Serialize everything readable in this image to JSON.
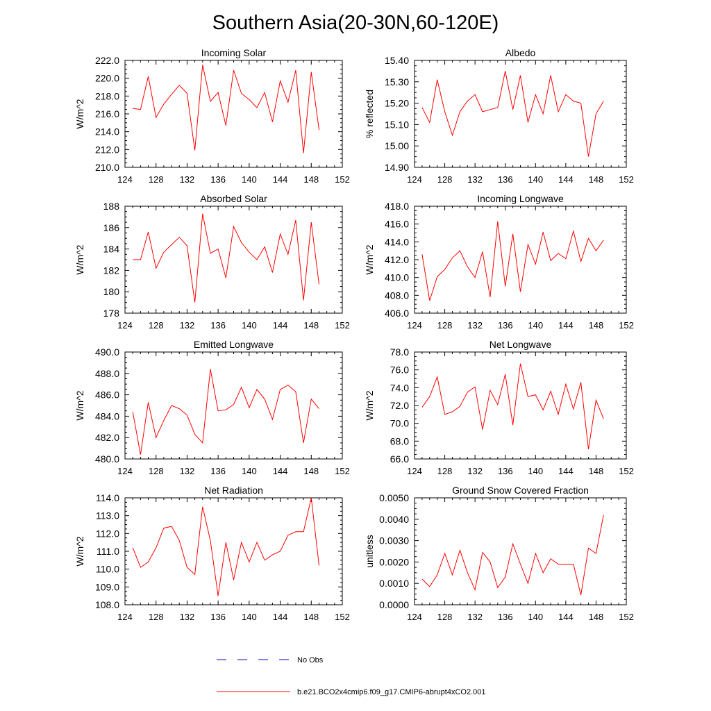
{
  "page": {
    "title": "Southern Asia(20-30N,60-120E)"
  },
  "legend": {
    "entries": [
      {
        "label": "No Obs",
        "color": "#0000cc",
        "dashed": true
      },
      {
        "label": "b.e21.BCO2x4cmip6.f09_g17.CMIP6-abrupt4xCO2.001",
        "color": "#ff0000",
        "dashed": false
      }
    ]
  },
  "chart_data": [
    {
      "type": "line",
      "id": "incoming-solar",
      "title": "Incoming Solar",
      "ylabel": "W/m^2",
      "xlim": [
        124,
        152
      ],
      "xticks": [
        124,
        128,
        132,
        136,
        140,
        144,
        148,
        152
      ],
      "ylim": [
        210,
        222
      ],
      "yticks": [
        "210.0",
        "212.0",
        "214.0",
        "216.0",
        "218.0",
        "220.0",
        "222.0"
      ],
      "x": [
        125,
        126,
        127,
        128,
        129,
        130,
        131,
        132,
        133,
        134,
        135,
        136,
        137,
        138,
        139,
        140,
        141,
        142,
        143,
        144,
        145,
        146,
        147,
        148,
        149
      ],
      "series": [
        {
          "name": "b.e21.BCO2x4cmip6.f09_g17.CMIP6-abrupt4xCO2.001",
          "color": "#ff0000",
          "values": [
            216.6,
            216.5,
            220.2,
            215.6,
            217.1,
            218.2,
            219.2,
            218.3,
            211.9,
            221.5,
            217.4,
            218.4,
            214.7,
            220.9,
            218.3,
            217.6,
            216.7,
            218.4,
            215.1,
            219.7,
            217.3,
            220.9,
            211.6,
            220.7,
            214.2
          ]
        }
      ]
    },
    {
      "type": "line",
      "id": "albedo",
      "title": "Albedo",
      "ylabel": "% reflected",
      "xlim": [
        124,
        152
      ],
      "xticks": [
        124,
        128,
        132,
        136,
        140,
        144,
        148,
        152
      ],
      "ylim": [
        14.9,
        15.4
      ],
      "yticks": [
        "14.90",
        "15.00",
        "15.10",
        "15.20",
        "15.30",
        "15.40"
      ],
      "x": [
        125,
        126,
        127,
        128,
        129,
        130,
        131,
        132,
        133,
        134,
        135,
        136,
        137,
        138,
        139,
        140,
        141,
        142,
        143,
        144,
        145,
        146,
        147,
        148,
        149
      ],
      "series": [
        {
          "name": "b.e21.BCO2x4cmip6.f09_g17.CMIP6-abrupt4xCO2.001",
          "color": "#ff0000",
          "values": [
            15.18,
            15.11,
            15.31,
            15.16,
            15.05,
            15.16,
            15.21,
            15.24,
            15.16,
            15.17,
            15.18,
            15.35,
            15.17,
            15.33,
            15.11,
            15.24,
            15.15,
            15.33,
            15.16,
            15.24,
            15.21,
            15.2,
            14.95,
            15.15,
            15.21
          ]
        }
      ]
    },
    {
      "type": "line",
      "id": "absorbed-solar",
      "title": "Absorbed Solar",
      "ylabel": "W/m^2",
      "xlim": [
        124,
        152
      ],
      "xticks": [
        124,
        128,
        132,
        136,
        140,
        144,
        148,
        152
      ],
      "ylim": [
        178,
        188
      ],
      "yticks": [
        "178",
        "180",
        "182",
        "184",
        "186",
        "188"
      ],
      "x": [
        125,
        126,
        127,
        128,
        129,
        130,
        131,
        132,
        133,
        134,
        135,
        136,
        137,
        138,
        139,
        140,
        141,
        142,
        143,
        144,
        145,
        146,
        147,
        148,
        149
      ],
      "series": [
        {
          "name": "b.e21.BCO2x4cmip6.f09_g17.CMIP6-abrupt4xCO2.001",
          "color": "#ff0000",
          "values": [
            183.0,
            183.0,
            185.6,
            182.2,
            183.7,
            184.4,
            185.1,
            184.3,
            179.0,
            187.3,
            183.6,
            184.0,
            181.3,
            186.1,
            184.6,
            183.7,
            183.0,
            184.2,
            181.8,
            185.4,
            183.5,
            186.7,
            179.2,
            186.5,
            180.7
          ]
        }
      ]
    },
    {
      "type": "line",
      "id": "incoming-longwave",
      "title": "Incoming Longwave",
      "ylabel": "W/m^2",
      "xlim": [
        124,
        152
      ],
      "xticks": [
        124,
        128,
        132,
        136,
        140,
        144,
        148,
        152
      ],
      "ylim": [
        406,
        418
      ],
      "yticks": [
        "406.0",
        "408.0",
        "410.0",
        "412.0",
        "414.0",
        "416.0",
        "418.0"
      ],
      "x": [
        125,
        126,
        127,
        128,
        129,
        130,
        131,
        132,
        133,
        134,
        135,
        136,
        137,
        138,
        139,
        140,
        141,
        142,
        143,
        144,
        145,
        146,
        147,
        148,
        149
      ],
      "series": [
        {
          "name": "b.e21.BCO2x4cmip6.f09_g17.CMIP6-abrupt4xCO2.001",
          "color": "#ff0000",
          "values": [
            412.6,
            407.4,
            410.1,
            410.9,
            412.2,
            413.0,
            411.2,
            410.0,
            412.9,
            407.8,
            416.3,
            409.0,
            414.9,
            408.4,
            413.7,
            411.5,
            415.1,
            411.9,
            412.7,
            412.1,
            415.2,
            411.8,
            414.4,
            413.0,
            414.2
          ]
        }
      ]
    },
    {
      "type": "line",
      "id": "emitted-longwave",
      "title": "Emitted Longwave",
      "ylabel": "W/m^2",
      "xlim": [
        124,
        152
      ],
      "xticks": [
        124,
        128,
        132,
        136,
        140,
        144,
        148,
        152
      ],
      "ylim": [
        480,
        490
      ],
      "yticks": [
        "480.0",
        "482.0",
        "484.0",
        "486.0",
        "488.0",
        "490.0"
      ],
      "x": [
        125,
        126,
        127,
        128,
        129,
        130,
        131,
        132,
        133,
        134,
        135,
        136,
        137,
        138,
        139,
        140,
        141,
        142,
        143,
        144,
        145,
        146,
        147,
        148,
        149
      ],
      "series": [
        {
          "name": "b.e21.BCO2x4cmip6.f09_g17.CMIP6-abrupt4xCO2.001",
          "color": "#ff0000",
          "values": [
            484.4,
            480.4,
            485.3,
            482.0,
            483.6,
            485.0,
            484.7,
            484.1,
            482.3,
            481.5,
            488.4,
            484.5,
            484.6,
            485.1,
            486.7,
            484.8,
            486.5,
            485.6,
            483.7,
            486.5,
            486.9,
            486.3,
            481.5,
            485.6,
            484.7
          ]
        }
      ]
    },
    {
      "type": "line",
      "id": "net-longwave",
      "title": "Net Longwave",
      "ylabel": "W/m^2",
      "xlim": [
        124,
        152
      ],
      "xticks": [
        124,
        128,
        132,
        136,
        140,
        144,
        148,
        152
      ],
      "ylim": [
        66,
        78
      ],
      "yticks": [
        "66.0",
        "68.0",
        "70.0",
        "72.0",
        "74.0",
        "76.0",
        "78.0"
      ],
      "x": [
        125,
        126,
        127,
        128,
        129,
        130,
        131,
        132,
        133,
        134,
        135,
        136,
        137,
        138,
        139,
        140,
        141,
        142,
        143,
        144,
        145,
        146,
        147,
        148,
        149
      ],
      "series": [
        {
          "name": "b.e21.BCO2x4cmip6.f09_g17.CMIP6-abrupt4xCO2.001",
          "color": "#ff0000",
          "values": [
            71.8,
            73.0,
            75.2,
            71.0,
            71.3,
            71.9,
            73.5,
            74.1,
            69.3,
            73.7,
            72.1,
            75.5,
            69.8,
            76.7,
            73.0,
            73.2,
            71.5,
            73.6,
            71.0,
            74.4,
            71.6,
            74.6,
            67.1,
            72.6,
            70.5
          ]
        }
      ]
    },
    {
      "type": "line",
      "id": "net-radiation",
      "title": "Net Radiation",
      "ylabel": "W/m^2",
      "xlim": [
        124,
        152
      ],
      "xticks": [
        124,
        128,
        132,
        136,
        140,
        144,
        148,
        152
      ],
      "ylim": [
        108,
        114
      ],
      "yticks": [
        "108.0",
        "109.0",
        "110.0",
        "111.0",
        "112.0",
        "113.0",
        "114.0"
      ],
      "x": [
        125,
        126,
        127,
        128,
        129,
        130,
        131,
        132,
        133,
        134,
        135,
        136,
        137,
        138,
        139,
        140,
        141,
        142,
        143,
        144,
        145,
        146,
        147,
        148,
        149
      ],
      "series": [
        {
          "name": "b.e21.BCO2x4cmip6.f09_g17.CMIP6-abrupt4xCO2.001",
          "color": "#ff0000",
          "values": [
            111.2,
            110.1,
            110.4,
            111.2,
            112.3,
            112.4,
            111.6,
            110.1,
            109.7,
            113.5,
            111.6,
            108.5,
            111.5,
            109.4,
            111.5,
            110.4,
            111.5,
            110.5,
            110.8,
            111.0,
            111.9,
            112.1,
            112.1,
            114.0,
            110.2
          ]
        }
      ]
    },
    {
      "type": "line",
      "id": "ground-snow-covered-fraction",
      "title": "Ground Snow Covered Fraction",
      "ylabel": "unitless",
      "xlim": [
        124,
        152
      ],
      "xticks": [
        124,
        128,
        132,
        136,
        140,
        144,
        148,
        152
      ],
      "ylim": [
        0,
        0.005
      ],
      "yticks": [
        "0.0000",
        "0.0010",
        "0.0020",
        "0.0030",
        "0.0040",
        "0.0050"
      ],
      "x": [
        125,
        126,
        127,
        128,
        129,
        130,
        131,
        132,
        133,
        134,
        135,
        136,
        137,
        138,
        139,
        140,
        141,
        142,
        143,
        144,
        145,
        146,
        147,
        148,
        149
      ],
      "series": [
        {
          "name": "b.e21.BCO2x4cmip6.f09_g17.CMIP6-abrupt4xCO2.001",
          "color": "#ff0000",
          "values": [
            0.0012,
            0.00085,
            0.0014,
            0.0024,
            0.0014,
            0.00255,
            0.0015,
            0.0007,
            0.00245,
            0.002,
            0.0008,
            0.0013,
            0.00285,
            0.0019,
            0.001,
            0.0024,
            0.0015,
            0.00215,
            0.0019,
            0.0019,
            0.0019,
            0.00045,
            0.00265,
            0.0024,
            0.0042
          ]
        }
      ]
    }
  ]
}
